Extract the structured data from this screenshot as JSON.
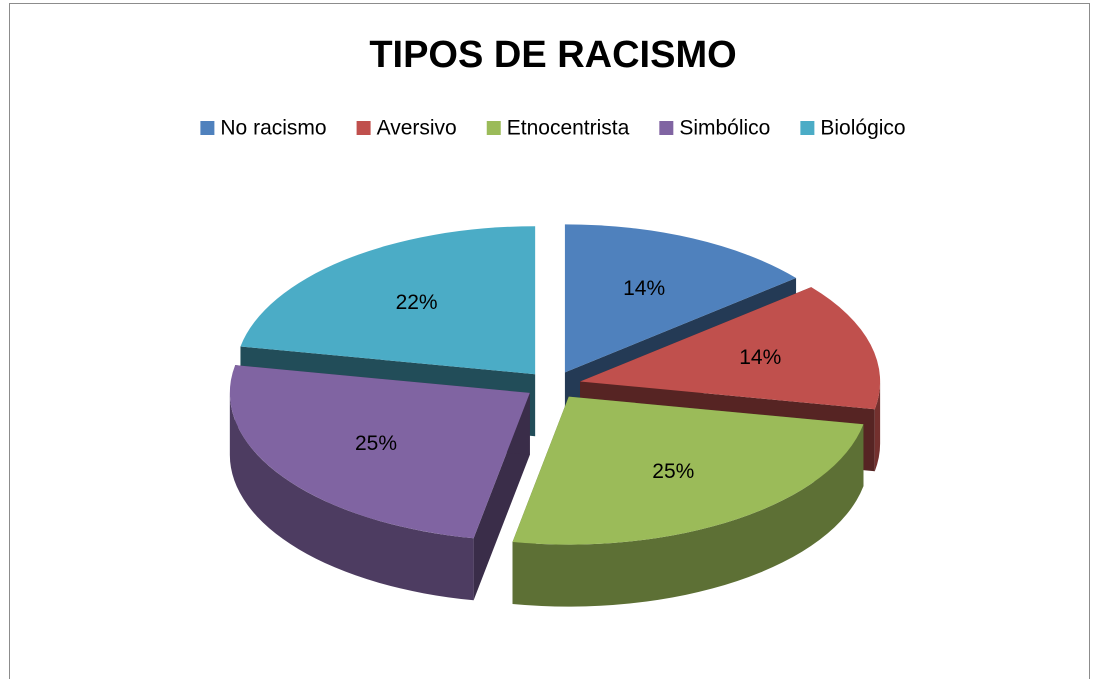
{
  "chart_data": {
    "type": "pie",
    "title": "TIPOS DE RACISMO",
    "categories": [
      "No racismo",
      "Aversivo",
      "Etnocentrista",
      "Simbólico",
      "Biológico"
    ],
    "values": [
      14,
      14,
      25,
      25,
      22
    ],
    "value_labels": [
      "14%",
      "14%",
      "25%",
      "25%",
      "22%"
    ],
    "colors": [
      "#4f81bd",
      "#c0504d",
      "#9bbb59",
      "#8064a2",
      "#4bacc6"
    ],
    "legend": "top"
  }
}
